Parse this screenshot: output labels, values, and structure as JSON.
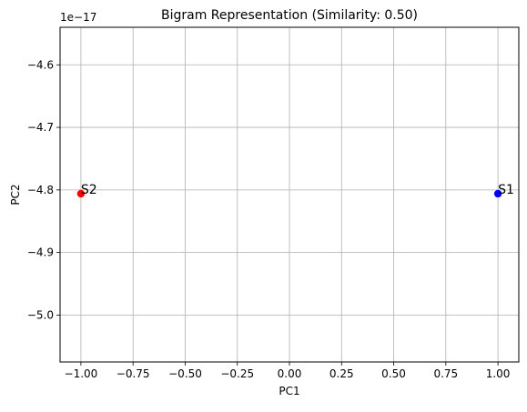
{
  "chart_data": {
    "type": "scatter",
    "title": "Bigram Representation (Similarity: 0.50)",
    "xlabel": "PC1",
    "ylabel": "PC2",
    "y_offset_text": "1e−17",
    "xlim": [
      -1.1,
      1.1
    ],
    "ylim": [
      -5.075,
      -4.54
    ],
    "x_ticks": [
      -1.0,
      -0.75,
      -0.5,
      -0.25,
      0.0,
      0.25,
      0.5,
      0.75,
      1.0
    ],
    "x_tick_labels": [
      "−1.00",
      "−0.75",
      "−0.50",
      "−0.25",
      "0.00",
      "0.25",
      "0.50",
      "0.75",
      "1.00"
    ],
    "y_ticks": [
      -4.6,
      -4.7,
      -4.8,
      -4.9,
      -5.0
    ],
    "y_tick_labels": [
      "−4.6",
      "−4.7",
      "−4.8",
      "−4.9",
      "−5.0"
    ],
    "grid": true,
    "points": [
      {
        "label": "S1",
        "x": 1.0,
        "y": -4.806,
        "color": "#0000ff"
      },
      {
        "label": "S2",
        "x": -1.0,
        "y": -4.806,
        "color": "#ff0000"
      }
    ]
  }
}
